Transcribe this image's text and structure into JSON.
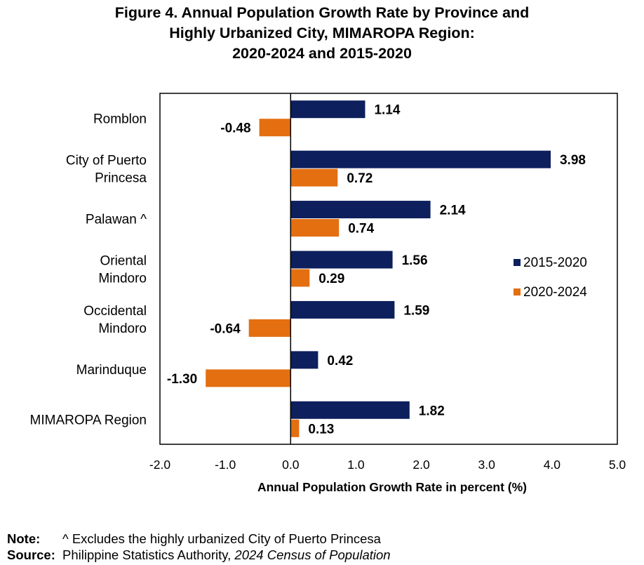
{
  "title_lines": [
    "Figure 4. Annual Population Growth Rate by Province and",
    "Highly Urbanized City, MIMAROPA Region:",
    "2020-2024 and 2015-2020"
  ],
  "chart_data": {
    "type": "bar",
    "orientation": "horizontal",
    "categories": [
      [
        "Romblon"
      ],
      [
        "City of Puerto",
        "Princesa"
      ],
      [
        "Palawan ^"
      ],
      [
        "Oriental",
        "Mindoro"
      ],
      [
        "Occidental",
        "Mindoro"
      ],
      [
        "Marinduque"
      ],
      [
        "MIMAROPA Region"
      ]
    ],
    "series": [
      {
        "name": "2015-2020",
        "color": "#0D1F5C",
        "values": [
          1.14,
          3.98,
          2.14,
          1.56,
          1.59,
          0.42,
          1.82
        ],
        "labels": [
          "1.14",
          "3.98",
          "2.14",
          "1.56",
          "1.59",
          "0.42",
          "1.82"
        ]
      },
      {
        "name": "2020-2024",
        "color": "#E46F10",
        "values": [
          -0.48,
          0.72,
          0.74,
          0.29,
          -0.64,
          -1.3,
          0.13
        ],
        "labels": [
          "-0.48",
          "0.72",
          "0.74",
          "0.29",
          "-0.64",
          "-1.30",
          "0.13"
        ]
      }
    ],
    "xlim": [
      -2.0,
      5.0
    ],
    "xticks": [
      "-2.0",
      "-1.0",
      "0.0",
      "1.0",
      "2.0",
      "3.0",
      "4.0",
      "5.0"
    ],
    "xtick_values": [
      -2,
      -1,
      0,
      1,
      2,
      3,
      4,
      5
    ],
    "xlabel": "Annual Population Growth Rate in percent (%)",
    "ylabel": "",
    "legend": "right",
    "grid": false
  },
  "notes": {
    "note_label": "Note:",
    "note_text": "^ Excludes the highly urbanized City of Puerto Princesa",
    "source_label": "Source:",
    "source_text": "Philippine Statistics Authority, ",
    "source_italic": "2024 Census of Population"
  }
}
